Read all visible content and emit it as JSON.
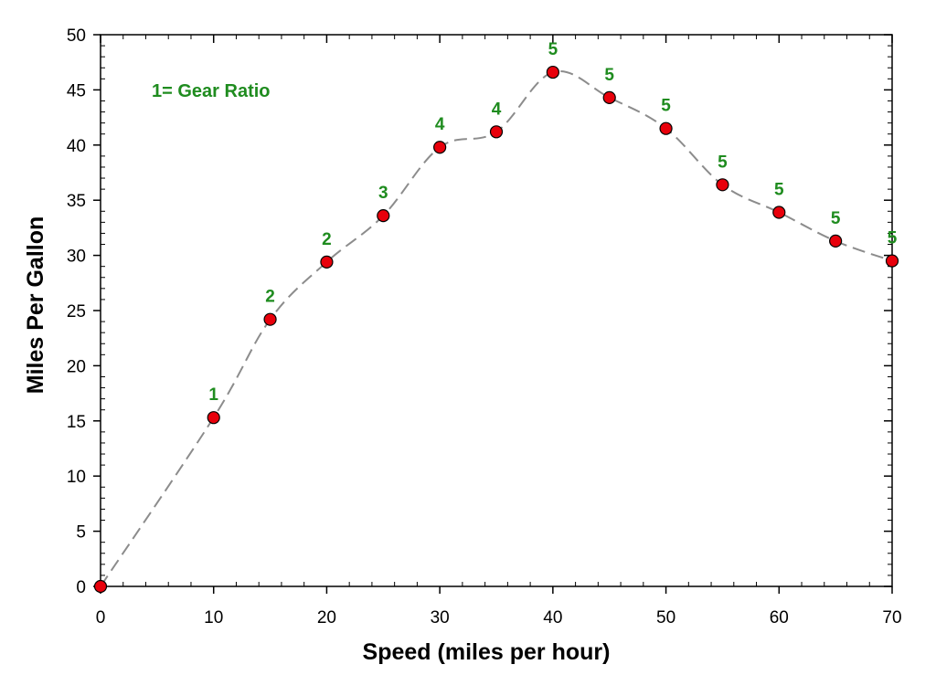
{
  "chart_data": {
    "type": "line",
    "xlabel": "Speed (miles per hour)",
    "ylabel": "Miles Per Gallon",
    "xlim": [
      0,
      70
    ],
    "ylim": [
      0,
      50
    ],
    "x_ticks": [
      "0",
      "10",
      "20",
      "30",
      "40",
      "50",
      "60",
      "70"
    ],
    "y_ticks": [
      "0",
      "5",
      "10",
      "15",
      "20",
      "25",
      "30",
      "35",
      "40",
      "45",
      "50"
    ],
    "annotation": "1= Gear Ratio",
    "grid": false,
    "line_style": "dashed",
    "x": [
      0,
      10,
      15,
      20,
      25,
      30,
      35,
      40,
      45,
      50,
      55,
      60,
      65,
      70
    ],
    "y": [
      0,
      15.3,
      24.2,
      29.4,
      33.6,
      39.8,
      41.2,
      46.6,
      44.3,
      41.5,
      36.4,
      33.9,
      31.3,
      29.5
    ],
    "point_labels": [
      "",
      "1",
      "2",
      "2",
      "3",
      "4",
      "4",
      "5",
      "5",
      "5",
      "5",
      "5",
      "5",
      "5"
    ],
    "colors": {
      "marker_fill": "#e8000b",
      "marker_stroke": "#000000",
      "line": "#8c8c8c",
      "label": "#1f8c1f"
    }
  }
}
